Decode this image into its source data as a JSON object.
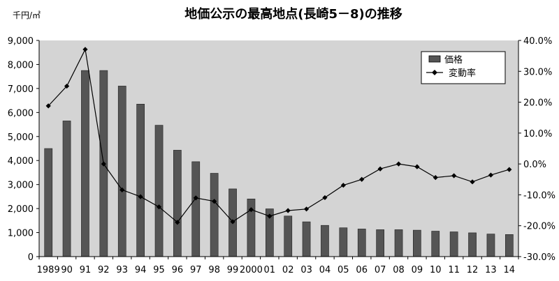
{
  "chart_data": {
    "type": "bar",
    "title": "地価公示の最高地点(長崎5－8)の推移",
    "y_unit_label": "千円/㎡",
    "categories": [
      "1989",
      "90",
      "91",
      "92",
      "93",
      "94",
      "95",
      "96",
      "97",
      "98",
      "99",
      "2000",
      "01",
      "02",
      "03",
      "04",
      "05",
      "06",
      "07",
      "08",
      "09",
      "10",
      "11",
      "12",
      "13",
      "14"
    ],
    "series": [
      {
        "name": "価格",
        "kind": "bar",
        "axis": "left",
        "color": "#555555",
        "values": [
          4500,
          5650,
          7750,
          7750,
          7100,
          6350,
          5470,
          4430,
          3950,
          3470,
          2820,
          2400,
          1990,
          1690,
          1450,
          1300,
          1200,
          1150,
          1120,
          1120,
          1100,
          1060,
          1030,
          990,
          940,
          920
        ]
      },
      {
        "name": "変動率",
        "kind": "line",
        "axis": "right",
        "color": "#000000",
        "marker": "diamond",
        "values": [
          18.8,
          25.2,
          37.1,
          0.0,
          -8.4,
          -10.6,
          -13.9,
          -18.9,
          -11.0,
          -12.1,
          -18.7,
          -14.8,
          -16.9,
          -15.1,
          -14.6,
          -10.9,
          -6.9,
          -5.0,
          -1.6,
          0.0,
          -0.9,
          -4.4,
          -3.8,
          -5.8,
          -3.6,
          -1.8
        ]
      }
    ],
    "y_left": {
      "min": 0,
      "max": 9000,
      "step": 1000,
      "tick_labels": [
        "0",
        "1,000",
        "2,000",
        "3,000",
        "4,000",
        "5,000",
        "6,000",
        "7,000",
        "8,000",
        "9,000"
      ]
    },
    "y_right": {
      "min": -30,
      "max": 40,
      "step": 10,
      "tick_labels": [
        "-30.0%",
        "-20.0%",
        "-10.0%",
        "0.0%",
        "10.0%",
        "20.0%",
        "30.0%",
        "40.0%"
      ]
    },
    "plot_background": "#d4d4d4",
    "grid": false,
    "legend_position": "top-right"
  }
}
